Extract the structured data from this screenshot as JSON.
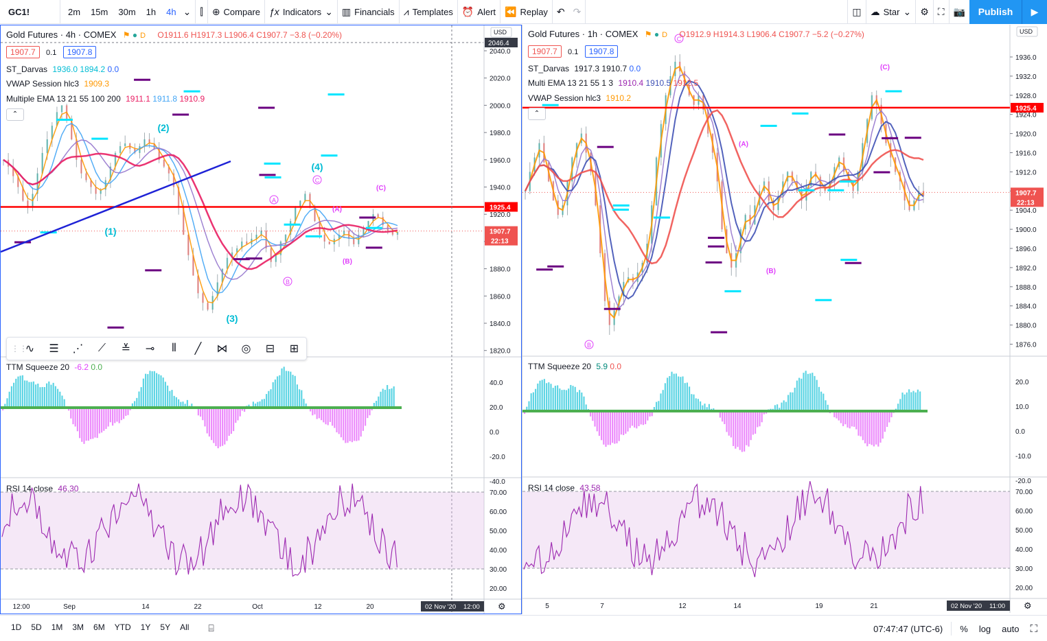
{
  "toolbar": {
    "symbol": "GC1!",
    "intervals": [
      "2m",
      "15m",
      "30m",
      "1h",
      "4h"
    ],
    "active_interval": "4h",
    "compare_label": "Compare",
    "indicators_label": "Indicators",
    "financials_label": "Financials",
    "templates_label": "Templates",
    "alert_label": "Alert",
    "replay_label": "Replay",
    "layout_name": "Star",
    "publish_label": "Publish"
  },
  "left_chart": {
    "title": "Gold Futures · 4h · COMEX",
    "ohlc": "O1911.6 H1917.3 L1906.4 C1907.7 −3.8 (−0.20%)",
    "bid": "1907.7",
    "spread": "0.1",
    "ask": "1907.8",
    "currency": "USD",
    "indicators": [
      {
        "name": "ST_Darvas",
        "values": [
          "1936.0",
          "1894.2",
          "0.0"
        ]
      },
      {
        "name": "VWAP Session hlc3",
        "values": [
          "1909.3"
        ]
      },
      {
        "name": "Multiple EMA 13 21 55 100 200",
        "values": [
          "1911.1",
          "1911.8",
          "1910.9"
        ]
      }
    ],
    "price_ticks": [
      "2040.0",
      "2020.0",
      "2000.0",
      "1980.0",
      "1960.0",
      "1940.0",
      "1920.0",
      "1900.0",
      "1880.0",
      "1860.0",
      "1840.0",
      "1820.0"
    ],
    "crosshair_price": "2046.4",
    "hline_price": "1925.4",
    "last_price": "1907.7",
    "countdown": "22:13",
    "wave_labels": [
      "(1)",
      "(2)",
      "(3)",
      "(4)",
      "A",
      "B",
      "C",
      "(A)",
      "(B)",
      "(C)"
    ],
    "squeeze_label": "TTM Squeeze 20",
    "squeeze_values": [
      "-6.2",
      "0.0"
    ],
    "squeeze_ticks": [
      "40.0",
      "20.0",
      "0.0",
      "-20.0",
      "-40.0"
    ],
    "rsi_label": "RSI 14 close",
    "rsi_value": "46.30",
    "rsi_ticks": [
      "70.00",
      "60.00",
      "50.00",
      "40.00",
      "30.00",
      "20.00"
    ],
    "time_ticks": [
      "12:00",
      "Sep",
      "14",
      "22",
      "Oct",
      "12",
      "20"
    ],
    "cursor_date": "02 Nov '20",
    "cursor_time": "12:00"
  },
  "right_chart": {
    "title": "Gold Futures · 1h · COMEX",
    "ohlc": "O1912.9 H1914.3 L1906.4 C1907.7 −5.2 (−0.27%)",
    "bid": "1907.7",
    "spread": "0.1",
    "ask": "1907.8",
    "currency": "USD",
    "indicators": [
      {
        "name": "ST_Darvas",
        "values": [
          "1917.3",
          "1910.7",
          "0.0"
        ]
      },
      {
        "name": "Multi EMA 13 21 55 1 3",
        "values": [
          "1910.4",
          "1910.5",
          "1912.5"
        ]
      },
      {
        "name": "VWAP Session hlc3",
        "values": [
          "1910.2"
        ]
      }
    ],
    "price_ticks": [
      "1936.0",
      "1932.0",
      "1928.0",
      "1924.0",
      "1920.0",
      "1916.0",
      "1912.0",
      "1908.0",
      "1904.0",
      "1900.0",
      "1896.0",
      "1892.0",
      "1888.0",
      "1884.0",
      "1880.0",
      "1876.0"
    ],
    "hline_price": "1925.4",
    "last_price": "1907.7",
    "countdown": "22:13",
    "wave_labels": [
      "(A)",
      "(B)",
      "(C)",
      "B",
      "C"
    ],
    "squeeze_label": "TTM Squeeze 20",
    "squeeze_values": [
      "5.9",
      "0.0"
    ],
    "squeeze_ticks": [
      "20.0",
      "10.0",
      "0.0",
      "-10.0",
      "-20.0"
    ],
    "rsi_label": "RSI 14 close",
    "rsi_value": "43.58",
    "rsi_ticks": [
      "70.00",
      "60.00",
      "50.00",
      "40.00",
      "30.00",
      "20.00"
    ],
    "time_ticks": [
      "5",
      "7",
      "12",
      "14",
      "19",
      "21"
    ],
    "cursor_date": "02 Nov '20",
    "cursor_time": "11:00"
  },
  "bottom": {
    "ranges": [
      "1D",
      "5D",
      "1M",
      "3M",
      "6M",
      "YTD",
      "1Y",
      "5Y",
      "All"
    ],
    "clock": "07:47:47 (UTC-6)",
    "percent_label": "%",
    "log_label": "log",
    "auto_label": "auto"
  },
  "colors": {
    "accent": "#2962ff",
    "hline": "#ff0000",
    "price_red": "#ef5350",
    "wave_cyan": "#00bcd4",
    "wave_magenta": "#e040fb"
  }
}
